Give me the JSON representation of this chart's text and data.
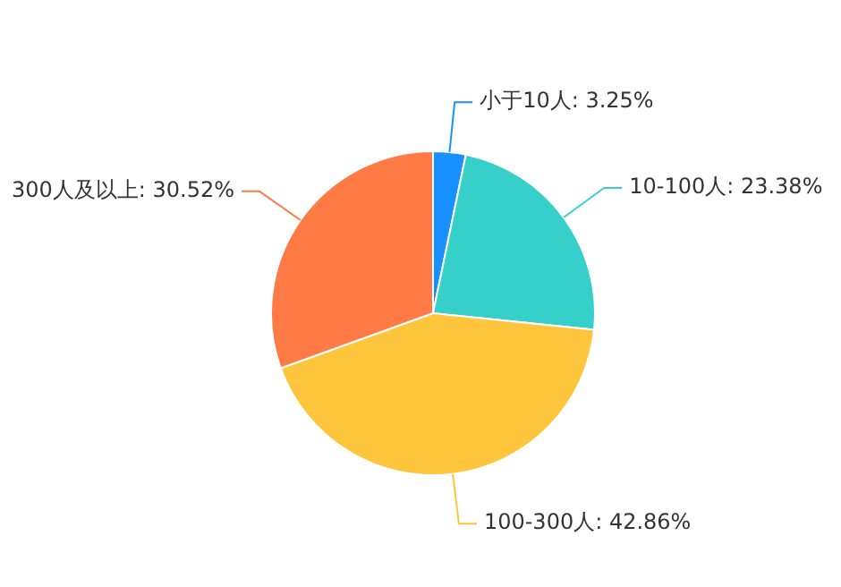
{
  "chart_data": {
    "type": "pie",
    "categories": [
      "小于10人",
      "10-100人",
      "100-300人",
      "300人及以上"
    ],
    "values": [
      3.25,
      23.38,
      42.86,
      30.52
    ],
    "value_labels": [
      "3.25%",
      "23.38%",
      "42.86%",
      "30.52%"
    ],
    "colors": [
      "#1890ff",
      "#36cfc9",
      "#ffc53d",
      "#ff7a45"
    ],
    "legend": false
  }
}
